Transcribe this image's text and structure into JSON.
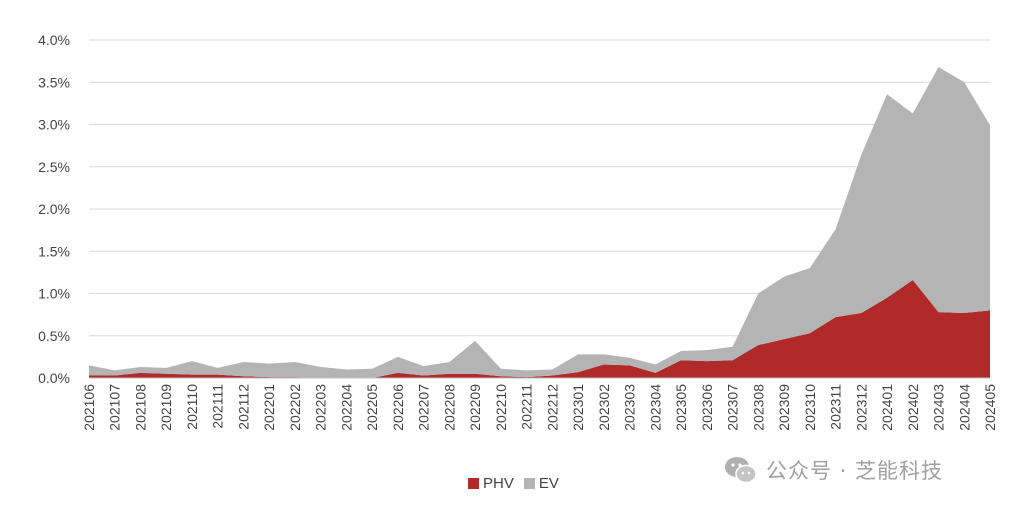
{
  "chart_data": {
    "type": "area",
    "stacked": true,
    "categories": [
      "202106",
      "202107",
      "202108",
      "202109",
      "202110",
      "202111",
      "202112",
      "202201",
      "202202",
      "202203",
      "202204",
      "202205",
      "202206",
      "202207",
      "202208",
      "202209",
      "202210",
      "202211",
      "202212",
      "202301",
      "202302",
      "202303",
      "202304",
      "202305",
      "202306",
      "202307",
      "202308",
      "202309",
      "202310",
      "202311",
      "202312",
      "202401",
      "202402",
      "202403",
      "202404",
      "202405"
    ],
    "series": [
      {
        "name": "PHV",
        "color": "#b02a2a",
        "values": [
          0.03,
          0.03,
          0.06,
          0.05,
          0.04,
          0.04,
          0.02,
          0.01,
          0.01,
          0.0,
          0.0,
          0.0,
          0.06,
          0.03,
          0.05,
          0.05,
          0.02,
          0.01,
          0.03,
          0.07,
          0.16,
          0.15,
          0.06,
          0.21,
          0.2,
          0.21,
          0.39,
          0.46,
          0.53,
          0.72,
          0.77,
          0.95,
          1.16,
          0.78,
          0.77,
          0.8
        ]
      },
      {
        "name": "EV",
        "color": "#b4b4b4",
        "values": [
          0.12,
          0.06,
          0.07,
          0.07,
          0.16,
          0.08,
          0.17,
          0.16,
          0.18,
          0.13,
          0.1,
          0.11,
          0.19,
          0.11,
          0.14,
          0.39,
          0.09,
          0.08,
          0.07,
          0.21,
          0.12,
          0.09,
          0.1,
          0.11,
          0.13,
          0.16,
          0.61,
          0.74,
          0.77,
          1.04,
          1.87,
          2.41,
          1.97,
          2.9,
          2.73,
          2.19
        ]
      }
    ],
    "ylim": [
      0,
      4.0
    ],
    "yticks": [
      "0.0%",
      "0.5%",
      "1.0%",
      "1.5%",
      "2.0%",
      "2.5%",
      "3.0%",
      "3.5%",
      "4.0%"
    ],
    "grid": true,
    "legend_position": "bottom-center"
  },
  "legend": [
    {
      "label": "PHV",
      "color": "#b02a2a"
    },
    {
      "label": "EV",
      "color": "#b4b4b4"
    }
  ],
  "watermark": {
    "text": "公众号 · 芝能科技"
  }
}
